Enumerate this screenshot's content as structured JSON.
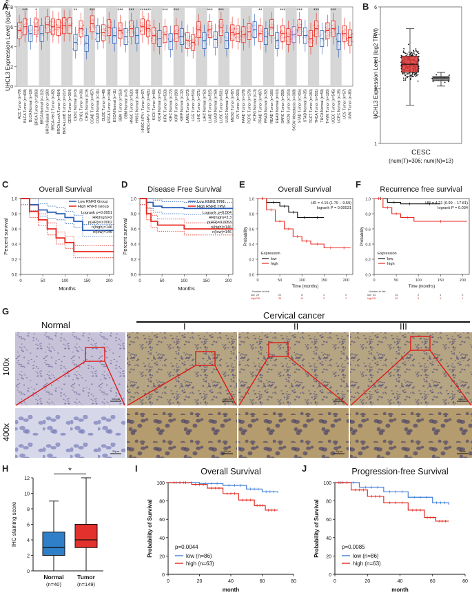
{
  "panels": {
    "A": {
      "letter": "A",
      "ylabel": "UHCL3 Expression Level (log2 TPM)",
      "yticks": [
        "0",
        "2",
        "4",
        "6",
        "8"
      ],
      "sig": [
        "***",
        "*",
        "**",
        "***",
        "***",
        "***",
        "***",
        "***",
        "***",
        "***",
        "***",
        "***",
        "**",
        "***",
        "***",
        "***",
        "***"
      ],
      "labels": [
        "ACC Tumor (n=79)",
        "BLCA Tumor (n=408)",
        "BLCA Normal (n=19)",
        "BRCA Tumor (n=1093)",
        "BRCA Normal (n=112)",
        "BRCA-Basal Tumor (n=190)",
        "BRCA-Her2 Tumor (n=82)",
        "BRCA-LumA Tumor (n=564)",
        "BRCA-LumB Tumor (n=217)",
        "CESC Tumor (n=304)",
        "CESC Normal (n=3)",
        "CHOL Tumor (n=36)",
        "CHOL Normal (n=9)",
        "COAD Tumor (n=457)",
        "COAD Normal (n=41)",
        "DLBC Tumor (n=48)",
        "ESCA Tumor (n=184)",
        "ESCA Normal (n=11)",
        "GBM Tumor (n=153)",
        "GBM Normal (n=5)",
        "HNSC Tumor (n=520)",
        "HNSC Normal (n=44)",
        "HNSC-HPV+ Tumor (n=97)",
        "HNSC-HPV- Tumor (n=421)",
        "KICH Tumor (n=66)",
        "KICH Normal (n=25)",
        "KIRC Tumor (n=533)",
        "KIRC Normal (n=72)",
        "KIRP Tumor (n=290)",
        "KIRP Normal (n=32)",
        "LAML Tumor (n=173)",
        "LGG Tumor (n=516)",
        "LIHC Tumor (n=371)",
        "LIHC Normal (n=50)",
        "LUAD Tumor (n=515)",
        "LUAD Normal (n=59)",
        "LUSC Tumor (n=501)",
        "LUSC Normal (n=52)",
        "MESO Tumor (n=87)",
        "OV Tumor (n=303)",
        "PAAD Tumor (n=178)",
        "PCPG Tumor (n=179)",
        "PCPG Normal (n=3)",
        "PRAD Tumor (n=497)",
        "PRAD Normal (n=52)",
        "READ Tumor (n=166)",
        "READ Normal (n=10)",
        "SARC Tumor (n=259)",
        "SKCM Tumor (n=103)",
        "SKCM Metastasis (n=368)",
        "STAD Tumor (n=415)",
        "STAD Normal (n=35)",
        "TGCT Tumor (n=150)",
        "THCA Tumor (n=501)",
        "THCA Normal (n=59)",
        "THYM Tumor (n=120)",
        "UCEC Tumor (n=545)",
        "UCEC Normal (n=35)",
        "UCS Tumor (n=57)",
        "UVM Tumor (n=80)"
      ]
    },
    "B": {
      "letter": "B",
      "ylabel": "UCHL3 Expression Level (log2 TPM)",
      "yticks": [
        "1",
        "2",
        "3",
        "4",
        "5",
        "6"
      ],
      "name": "CESC",
      "sub": "(num(T)=306; num(N)=13)"
    },
    "C": {
      "letter": "C",
      "title": "Overall Survival",
      "xlabel": "Months",
      "ylabel": "Percent survival",
      "legend": [
        "Low RNF8 Group",
        "High RNF8 Group"
      ],
      "stats": [
        "Logrank p=0.0051",
        "HR(high)=2",
        "p(HR)=0.0062",
        "n(high)=146",
        "n(low)=146"
      ],
      "xticks": [
        "0",
        "50",
        "100",
        "150",
        "200"
      ],
      "yticks": [
        "0.0",
        "0.2",
        "0.4",
        "0.6",
        "0.8",
        "1.0"
      ]
    },
    "D": {
      "letter": "D",
      "title": "Disease Free Survival",
      "xlabel": "Months",
      "ylabel": "Percent survival",
      "legend": [
        "Low RNF8 TPM",
        "High RNF8 TPM"
      ],
      "stats": [
        "Logrank p=0.004",
        "HR(high)=3.3",
        "p(HR)=0.0053",
        "n(high)=146",
        "n(low)=146"
      ],
      "xticks": [
        "0",
        "50",
        "100",
        "150",
        "200"
      ],
      "yticks": [
        "0.0",
        "0.2",
        "0.4",
        "0.6",
        "0.8",
        "1.0"
      ]
    },
    "E": {
      "letter": "E",
      "title": "Overall Survival",
      "xlabel": "Time (months)",
      "ylabel": "Probability",
      "hr": "HR = 4.15 (1.79 − 9.59)",
      "logrank": "logrank P = 0.00031",
      "legend_title": "Expression",
      "legend": [
        "low",
        "high"
      ],
      "risk_title": "Number at risk",
      "risk_low": [
        "low",
        "29",
        "22",
        "8",
        "2",
        "0"
      ],
      "risk_high": [
        "high",
        "228",
        "38",
        "14",
        "5",
        "2"
      ],
      "xticks": [
        "0",
        "50",
        "100",
        "150",
        "200"
      ],
      "yticks": [
        "0.0",
        "0.2",
        "0.4",
        "0.6",
        "0.8",
        "1.0"
      ]
    },
    "F": {
      "letter": "F",
      "title": "Recurrence free survival",
      "xlabel": "Time (months)",
      "ylabel": "Probability",
      "hr": "HR = 4.21 (0.99 − 17.81)",
      "logrank": "logrank P = 0.034",
      "legend_title": "Expression",
      "legend": [
        "low",
        "high"
      ],
      "risk_title": "Number at risk",
      "risk_low": [
        "low",
        "43",
        "14",
        "2",
        "1",
        "0"
      ],
      "risk_high": [
        "high",
        "131",
        "28",
        "6",
        "3",
        "1"
      ],
      "xticks": [
        "0",
        "50",
        "100",
        "150",
        "200"
      ],
      "yticks": [
        "0.0",
        "0.2",
        "0.4",
        "0.6",
        "0.8",
        "1.0"
      ]
    },
    "G": {
      "letter": "G",
      "normal": "Normal",
      "cancer": "Cervical cancer",
      "grades": [
        "I",
        "II",
        "III"
      ],
      "mag1": "100x",
      "mag2": "400x",
      "scale1": "100μm",
      "scale2": "20μm"
    },
    "H": {
      "letter": "H",
      "ylabel": "IHC staining score",
      "sig": "*",
      "yticks": [
        "0",
        "2",
        "4",
        "6",
        "8",
        "10",
        "12"
      ],
      "groups": [
        {
          "name": "Normal",
          "n": "(n=40)"
        },
        {
          "name": "Tumor",
          "n": "(n=149)"
        }
      ]
    },
    "I": {
      "letter": "I",
      "title": "Overall Survival",
      "xlabel": "month",
      "ylabel": "Probability of Survival",
      "p": "p=0.0044",
      "legend": [
        "low (n=86)",
        "high (n=63)"
      ],
      "xticks": [
        "0",
        "20",
        "40",
        "60",
        "80"
      ],
      "yticks": [
        "0",
        "20",
        "40",
        "60",
        "80",
        "100"
      ]
    },
    "J": {
      "letter": "J",
      "title": "Progression-free Survival",
      "xlabel": "month",
      "ylabel": "Probability of Survival",
      "p": "p=0.0085",
      "legend": [
        "low (n=86)",
        "high (n=63)"
      ],
      "xticks": [
        "0",
        "20",
        "40",
        "60",
        "80"
      ],
      "yticks": [
        "0",
        "20",
        "40",
        "60",
        "80",
        "100"
      ]
    }
  },
  "colors": {
    "red": "#e8281f",
    "blue": "#2b5fb8",
    "pink": "#e33a3a",
    "gray": "#d6d6d6",
    "ihc_brown": "#b99a6a",
    "ihc_blue": "#9ea7cf"
  },
  "chart_data": [
    {
      "panel": "A",
      "type": "box",
      "title": "",
      "ylabel": "UHCL3 Expression Level (log2 TPM)",
      "ylim": [
        0,
        8
      ],
      "categories": [
        "ACC Tumor",
        "BLCA Tumor",
        "BLCA Normal",
        "BRCA Tumor",
        "BRCA Normal",
        "BRCA-Basal Tumor",
        "BRCA-Her2 Tumor",
        "BRCA-LumA Tumor",
        "BRCA-LumB Tumor",
        "CESC Tumor",
        "CESC Normal",
        "CHOL Tumor",
        "CHOL Normal",
        "COAD Tumor",
        "COAD Normal",
        "DLBC Tumor",
        "ESCA Tumor",
        "ESCA Normal",
        "GBM Tumor",
        "GBM Normal",
        "HNSC Tumor",
        "HNSC Normal",
        "HNSC-HPV+ Tumor",
        "HNSC-HPV- Tumor",
        "KICH Tumor",
        "KICH Normal",
        "KIRC Tumor",
        "KIRC Normal",
        "KIRP Tumor",
        "KIRP Normal",
        "LAML Tumor",
        "LGG Tumor",
        "LIHC Tumor",
        "LIHC Normal",
        "LUAD Tumor",
        "LUAD Normal",
        "LUSC Tumor",
        "LUSC Normal",
        "MESO Tumor",
        "OV Tumor",
        "PAAD Tumor",
        "PCPG Tumor",
        "PCPG Normal",
        "PRAD Tumor",
        "PRAD Normal",
        "READ Tumor",
        "READ Normal",
        "SARC Tumor",
        "SKCM Tumor",
        "SKCM Metastasis",
        "STAD Tumor",
        "STAD Normal",
        "TGCT Tumor",
        "THCA Tumor",
        "THCA Normal",
        "THYM Tumor",
        "UCEC Tumor",
        "UCEC Normal",
        "UCS Tumor",
        "UVM Tumor"
      ],
      "medians": [
        5.6,
        6.0,
        5.3,
        6.0,
        5.3,
        6.2,
        6.0,
        5.9,
        6.1,
        6.1,
        4.4,
        5.8,
        4.3,
        6.3,
        5.3,
        5.4,
        5.9,
        5.1,
        5.6,
        5.0,
        5.8,
        5.1,
        6.0,
        5.8,
        5.1,
        4.8,
        5.2,
        4.5,
        5.3,
        5.0,
        4.6,
        4.4,
        5.7,
        4.6,
        5.7,
        4.7,
        5.9,
        4.6,
        5.4,
        5.3,
        5.2,
        5.5,
        5.7,
        5.3,
        5.0,
        5.9,
        4.6,
        5.3,
        5.0,
        5.2,
        5.9,
        5.1,
        4.8,
        5.8,
        4.8,
        5.6,
        5.8,
        4.5,
        5.3,
        4.9
      ],
      "kinds": [
        "T",
        "T",
        "N",
        "T",
        "N",
        "T",
        "T",
        "T",
        "T",
        "T",
        "N",
        "T",
        "N",
        "T",
        "N",
        "T",
        "T",
        "N",
        "T",
        "N",
        "T",
        "N",
        "T",
        "T",
        "T",
        "N",
        "T",
        "N",
        "T",
        "N",
        "T",
        "T",
        "T",
        "N",
        "T",
        "N",
        "T",
        "N",
        "T",
        "T",
        "T",
        "T",
        "N",
        "T",
        "N",
        "T",
        "N",
        "T",
        "T",
        "M",
        "T",
        "N",
        "T",
        "T",
        "N",
        "T",
        "T",
        "N",
        "T",
        "T"
      ]
    },
    {
      "panel": "B",
      "type": "box",
      "categories": [
        "Tumor",
        "Normal"
      ],
      "ylim": [
        1,
        6
      ],
      "median": [
        3.9,
        3.4
      ],
      "q1": [
        3.6,
        3.3
      ],
      "q3": [
        4.2,
        3.45
      ],
      "min": [
        2.4,
        3.1
      ],
      "max": [
        5.2,
        3.6
      ]
    },
    {
      "panel": "C",
      "type": "line",
      "title": "Overall Survival",
      "x_range": [
        0,
        210
      ],
      "ylim": [
        0,
        1
      ],
      "series": [
        {
          "name": "Low RNF8 Group",
          "x": [
            0,
            20,
            40,
            60,
            80,
            100,
            120,
            140,
            210
          ],
          "y": [
            1,
            0.92,
            0.85,
            0.82,
            0.8,
            0.75,
            0.7,
            0.58,
            0.58
          ]
        },
        {
          "name": "High RNF8 Group",
          "x": [
            0,
            20,
            40,
            60,
            80,
            100,
            120,
            210
          ],
          "y": [
            1,
            0.83,
            0.72,
            0.6,
            0.48,
            0.42,
            0.3,
            0.3
          ]
        }
      ]
    },
    {
      "panel": "D",
      "type": "line",
      "title": "Disease Free Survival",
      "x_range": [
        0,
        210
      ],
      "ylim": [
        0,
        1
      ],
      "series": [
        {
          "name": "Low RNF8 TPM",
          "x": [
            0,
            15,
            30,
            50,
            80,
            100,
            210
          ],
          "y": [
            1,
            0.95,
            0.9,
            0.88,
            0.88,
            0.87,
            0.87
          ]
        },
        {
          "name": "High RNF8 TPM",
          "x": [
            0,
            15,
            25,
            40,
            80,
            100,
            210
          ],
          "y": [
            1,
            0.8,
            0.7,
            0.65,
            0.65,
            0.6,
            0.6
          ]
        }
      ]
    },
    {
      "panel": "E",
      "type": "line",
      "title": "Overall Survival",
      "x_range": [
        0,
        210
      ],
      "ylim": [
        0,
        1
      ],
      "series": [
        {
          "name": "low",
          "x": [
            0,
            20,
            50,
            70,
            90,
            120,
            150
          ],
          "y": [
            1,
            0.95,
            0.9,
            0.82,
            0.75,
            0.75,
            0.75
          ]
        },
        {
          "name": "high",
          "x": [
            0,
            20,
            40,
            60,
            80,
            100,
            120,
            150,
            180,
            210
          ],
          "y": [
            1,
            0.85,
            0.7,
            0.6,
            0.5,
            0.44,
            0.4,
            0.35,
            0.35,
            0.35
          ]
        }
      ]
    },
    {
      "panel": "F",
      "type": "line",
      "title": "Recurrence free survival",
      "x_range": [
        0,
        210
      ],
      "ylim": [
        0,
        1
      ],
      "series": [
        {
          "name": "low",
          "x": [
            0,
            30,
            60,
            100,
            150
          ],
          "y": [
            1,
            0.95,
            0.93,
            0.93,
            0.93
          ]
        },
        {
          "name": "high",
          "x": [
            0,
            20,
            40,
            60,
            90,
            210
          ],
          "y": [
            1,
            0.88,
            0.8,
            0.75,
            0.7,
            0.7
          ]
        }
      ]
    },
    {
      "panel": "H",
      "type": "box",
      "categories": [
        "Normal",
        "Tumor"
      ],
      "ylim": [
        0,
        12
      ],
      "median": [
        3,
        4
      ],
      "q1": [
        2,
        3
      ],
      "q3": [
        5,
        6
      ],
      "min": [
        0,
        0
      ],
      "max": [
        9,
        12
      ],
      "sig": "*"
    },
    {
      "panel": "I",
      "type": "line",
      "title": "Overall Survival",
      "x_range": [
        0,
        80
      ],
      "ylim": [
        0,
        100
      ],
      "series": [
        {
          "name": "low (n=86)",
          "x": [
            0,
            20,
            35,
            50,
            60,
            70
          ],
          "y": [
            100,
            99,
            97,
            93,
            90,
            89
          ]
        },
        {
          "name": "high (n=63)",
          "x": [
            0,
            15,
            25,
            35,
            45,
            55,
            62,
            70
          ],
          "y": [
            100,
            98,
            94,
            88,
            81,
            75,
            70,
            70
          ]
        }
      ]
    },
    {
      "panel": "J",
      "type": "line",
      "title": "Progression-free Survival",
      "x_range": [
        0,
        80
      ],
      "ylim": [
        0,
        100
      ],
      "series": [
        {
          "name": "low (n=86)",
          "x": [
            0,
            15,
            30,
            45,
            60,
            70
          ],
          "y": [
            100,
            95,
            90,
            84,
            78,
            76
          ]
        },
        {
          "name": "high (n=63)",
          "x": [
            0,
            10,
            20,
            30,
            45,
            55,
            62,
            70
          ],
          "y": [
            100,
            92,
            85,
            78,
            70,
            62,
            58,
            58
          ]
        }
      ]
    }
  ]
}
